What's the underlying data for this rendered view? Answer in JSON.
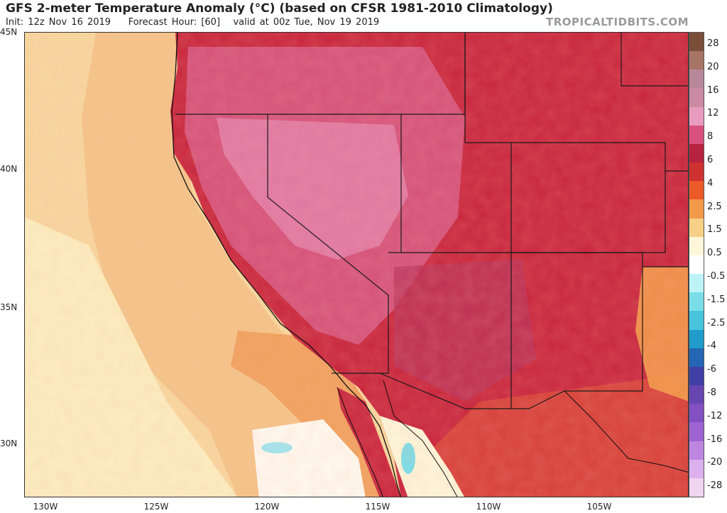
{
  "header": {
    "title": "GFS 2-meter Temperature Anomaly (°C) (based on CFSR 1981-2010 Climatology)",
    "init": "Init: 12z Nov 16 2019",
    "forecast_hour": "Forecast Hour: [60]",
    "valid": "valid at 00z Tue, Nov 19 2019",
    "watermark": "TROPICALTIDBITS.COM"
  },
  "map": {
    "lat_labels": [
      "45N",
      "40N",
      "35N",
      "30N"
    ],
    "lon_labels": [
      "130W",
      "125W",
      "120W",
      "115W",
      "110W",
      "105W"
    ],
    "colors": {
      "ocean_warm": "#f7d79e",
      "ocean_neutral": "#fbeec0",
      "coastal_anomaly": "#f0a25f",
      "land_warm": "#c8263d",
      "land_hot": "#d4527a",
      "land_very_hot": "#e27fa9",
      "cool_pocket": "#9fe6ef",
      "border": "#1a1a1a"
    }
  },
  "colorbar": {
    "labels": [
      "28",
      "20",
      "16",
      "12",
      "8",
      "6",
      "4",
      "2.5",
      "1.5",
      "0.5",
      "-0.5",
      "-1.5",
      "-2.5",
      "-4",
      "-6",
      "-8",
      "-12",
      "-16",
      "-20",
      "-28"
    ],
    "colors": [
      "#7a4f3a",
      "#a67565",
      "#b7889a",
      "#c98aa2",
      "#e89bbf",
      "#d94f7d",
      "#b6233f",
      "#cf3030",
      "#ec5a2a",
      "#f29a4a",
      "#f7cf86",
      "#fdf6da",
      "#ffffff",
      "#bdf3f7",
      "#7adde8",
      "#47c4dc",
      "#1f9cc9",
      "#2465b4",
      "#3f3fa6",
      "#6746b0",
      "#8350c2",
      "#9e64d2",
      "#bd86e0",
      "#dcb0ec",
      "#f0d4f0"
    ]
  }
}
